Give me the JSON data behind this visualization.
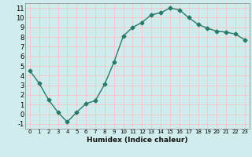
{
  "x": [
    0,
    1,
    2,
    3,
    4,
    5,
    6,
    7,
    8,
    9,
    10,
    11,
    12,
    13,
    14,
    15,
    16,
    17,
    18,
    19,
    20,
    21,
    22,
    23
  ],
  "y": [
    4.5,
    3.2,
    1.5,
    0.2,
    -0.8,
    0.2,
    1.1,
    1.4,
    3.1,
    5.4,
    8.1,
    9.0,
    9.5,
    10.3,
    10.5,
    11.0,
    10.8,
    10.0,
    9.3,
    8.9,
    8.6,
    8.5,
    8.3,
    7.7
  ],
  "line_color": "#2a7a6a",
  "bg_color": "#d0ecec",
  "grid_color": "#f5c8c8",
  "xlabel": "Humidex (Indice chaleur)",
  "xlim": [
    -0.5,
    23.5
  ],
  "ylim": [
    -1.5,
    11.5
  ],
  "yticks": [
    -1,
    0,
    1,
    2,
    3,
    4,
    5,
    6,
    7,
    8,
    9,
    10,
    11
  ],
  "xticks": [
    0,
    1,
    2,
    3,
    4,
    5,
    6,
    7,
    8,
    9,
    10,
    11,
    12,
    13,
    14,
    15,
    16,
    17,
    18,
    19,
    20,
    21,
    22,
    23
  ],
  "marker": "D",
  "markersize": 2.5,
  "linewidth": 1.0
}
